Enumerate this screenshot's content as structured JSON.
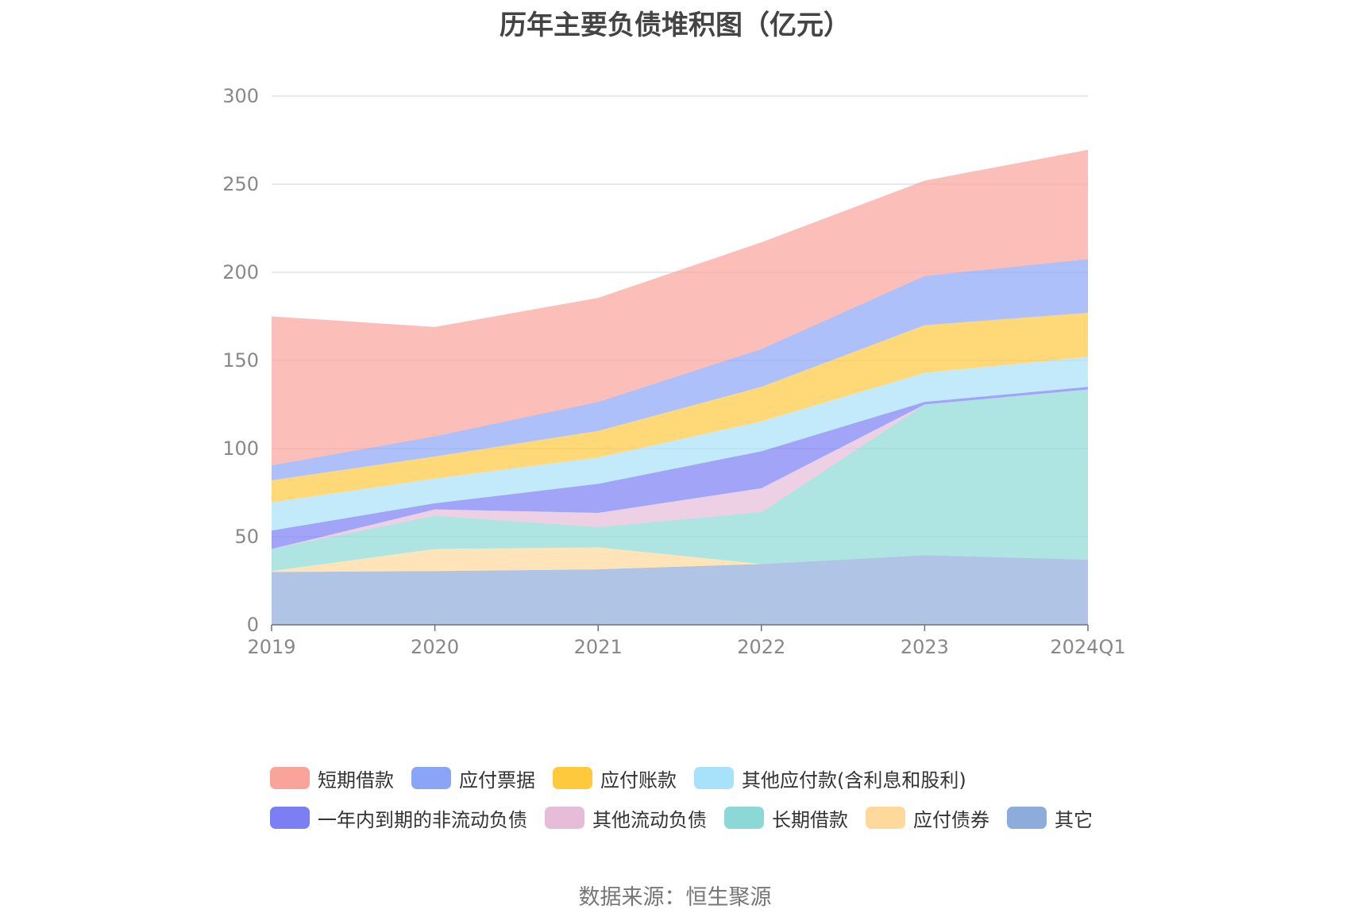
{
  "chart_data": {
    "type": "area",
    "stacked": true,
    "title": "历年主要负债堆积图（亿元）",
    "categories": [
      "2019",
      "2020",
      "2021",
      "2022",
      "2023",
      "2024Q1"
    ],
    "ylim": [
      0,
      300
    ],
    "yticks": [
      0,
      50,
      100,
      150,
      200,
      250,
      300
    ],
    "grid": true,
    "legend_position": "bottom",
    "series": [
      {
        "name": "其它",
        "color": "#8eacdb",
        "values": [
          30,
          30.5,
          31.5,
          34.5,
          39.5,
          37
        ]
      },
      {
        "name": "应付债券",
        "color": "#ffd99b",
        "values": [
          0.5,
          12.5,
          12.5,
          0,
          0,
          0
        ]
      },
      {
        "name": "长期借款",
        "color": "#8bd8d6",
        "values": [
          12.5,
          19,
          11.5,
          29.5,
          85.5,
          96.5
        ]
      },
      {
        "name": "其他流动负债",
        "color": "#e6bcd8",
        "values": [
          0,
          3.5,
          8,
          13.5,
          0,
          0
        ]
      },
      {
        "name": "一年内到期的非流动负债",
        "color": "#7b7ff3",
        "values": [
          10.5,
          3.5,
          16.5,
          21,
          1.5,
          1.5
        ]
      },
      {
        "name": "其他应付款(含利息和股利)",
        "color": "#a8e1fa",
        "values": [
          16,
          14,
          15,
          17,
          16.5,
          17
        ]
      },
      {
        "name": "应付账款",
        "color": "#ffc93d",
        "values": [
          12.5,
          12.5,
          15,
          19.5,
          27,
          25
        ]
      },
      {
        "name": "应付票据",
        "color": "#8aa5f6",
        "values": [
          8.5,
          11.5,
          16.5,
          21.5,
          28,
          30.5
        ]
      },
      {
        "name": "短期借款",
        "color": "#f9a39b",
        "values": [
          84.5,
          62,
          59,
          60.5,
          54,
          62
        ]
      }
    ],
    "source": "数据来源：恒生聚源"
  },
  "legend_rows": [
    [
      {
        "name": "短期借款",
        "color": "#f9a39b"
      },
      {
        "name": "应付票据",
        "color": "#8aa5f6"
      },
      {
        "name": "应付账款",
        "color": "#ffc93d"
      },
      {
        "name": "其他应付款(含利息和股利)",
        "color": "#a8e1fa"
      }
    ],
    [
      {
        "name": "一年内到期的非流动负债",
        "color": "#7b7ff3"
      },
      {
        "name": "其他流动负债",
        "color": "#e6bcd8"
      },
      {
        "name": "长期借款",
        "color": "#8bd8d6"
      },
      {
        "name": "应付债券",
        "color": "#ffd99b"
      },
      {
        "name": "其它",
        "color": "#8eacdb"
      }
    ]
  ]
}
